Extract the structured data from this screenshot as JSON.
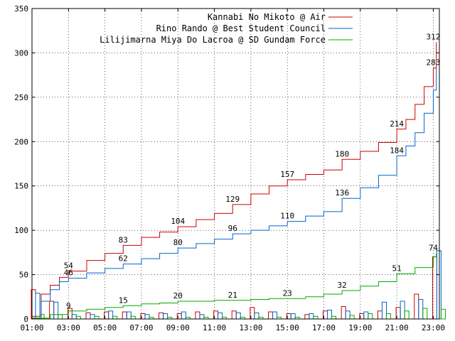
{
  "chart_data": {
    "type": "line",
    "grid": true,
    "legend_position": "top-right",
    "xlim": [
      "01:00",
      "23:20"
    ],
    "ylim": [
      0,
      350
    ],
    "yticks": [
      0,
      50,
      100,
      150,
      200,
      250,
      300,
      350
    ],
    "xticks": [
      "01:00",
      "03:00",
      "05:00",
      "07:00",
      "09:00",
      "11:00",
      "13:00",
      "15:00",
      "17:00",
      "19:00",
      "21:00",
      "23:00"
    ],
    "series": [
      {
        "name": "Kannabi No Mikoto @ Air",
        "color": "#cc0000",
        "points": [
          [
            "01:00",
            3
          ],
          [
            "01:30",
            28
          ],
          [
            "02:00",
            38
          ],
          [
            "02:30",
            47
          ],
          [
            "03:00",
            54
          ],
          [
            "04:00",
            66
          ],
          [
            "05:00",
            74
          ],
          [
            "06:00",
            83
          ],
          [
            "07:00",
            92
          ],
          [
            "08:00",
            98
          ],
          [
            "09:00",
            104
          ],
          [
            "10:00",
            112
          ],
          [
            "11:00",
            119
          ],
          [
            "12:00",
            129
          ],
          [
            "13:00",
            141
          ],
          [
            "14:00",
            150
          ],
          [
            "15:00",
            157
          ],
          [
            "16:00",
            163
          ],
          [
            "17:00",
            168
          ],
          [
            "18:00",
            180
          ],
          [
            "19:00",
            189
          ],
          [
            "20:00",
            199
          ],
          [
            "21:00",
            214
          ],
          [
            "21:30",
            225
          ],
          [
            "22:00",
            242
          ],
          [
            "22:30",
            262
          ],
          [
            "23:00",
            283
          ],
          [
            "23:10",
            312
          ]
        ],
        "labels": [
          [
            "03:00",
            54
          ],
          [
            "06:00",
            83
          ],
          [
            "09:00",
            104
          ],
          [
            "12:00",
            129
          ],
          [
            "15:00",
            157
          ],
          [
            "18:00",
            180
          ],
          [
            "21:00",
            214
          ],
          [
            "23:00",
            312
          ]
        ]
      },
      {
        "name": "Rino Rando @ Best Student Council",
        "color": "#0066cc",
        "points": [
          [
            "01:00",
            1
          ],
          [
            "01:30",
            20
          ],
          [
            "02:00",
            33
          ],
          [
            "02:30",
            42
          ],
          [
            "03:00",
            46
          ],
          [
            "04:00",
            52
          ],
          [
            "05:00",
            57
          ],
          [
            "06:00",
            62
          ],
          [
            "07:00",
            68
          ],
          [
            "08:00",
            74
          ],
          [
            "09:00",
            80
          ],
          [
            "10:00",
            85
          ],
          [
            "11:00",
            90
          ],
          [
            "12:00",
            96
          ],
          [
            "13:00",
            100
          ],
          [
            "14:00",
            105
          ],
          [
            "15:00",
            110
          ],
          [
            "16:00",
            116
          ],
          [
            "17:00",
            121
          ],
          [
            "18:00",
            136
          ],
          [
            "19:00",
            148
          ],
          [
            "20:00",
            162
          ],
          [
            "21:00",
            184
          ],
          [
            "21:30",
            195
          ],
          [
            "22:00",
            210
          ],
          [
            "22:30",
            232
          ],
          [
            "23:00",
            258
          ],
          [
            "23:10",
            283
          ]
        ],
        "labels": [
          [
            "03:00",
            46
          ],
          [
            "06:00",
            62
          ],
          [
            "09:00",
            80
          ],
          [
            "12:00",
            96
          ],
          [
            "15:00",
            110
          ],
          [
            "18:00",
            136
          ],
          [
            "21:00",
            184
          ],
          [
            "23:00",
            283
          ]
        ]
      },
      {
        "name": "Lilijimarna Miya Do Lacroa @ SD Gundam Force",
        "color": "#00aa00",
        "points": [
          [
            "01:00",
            1
          ],
          [
            "02:00",
            5
          ],
          [
            "03:00",
            9
          ],
          [
            "04:00",
            11
          ],
          [
            "05:00",
            13
          ],
          [
            "06:00",
            15
          ],
          [
            "07:00",
            17
          ],
          [
            "08:00",
            18
          ],
          [
            "09:00",
            20
          ],
          [
            "10:00",
            20
          ],
          [
            "11:00",
            21
          ],
          [
            "12:00",
            21
          ],
          [
            "13:00",
            22
          ],
          [
            "14:00",
            23
          ],
          [
            "15:00",
            23
          ],
          [
            "16:00",
            25
          ],
          [
            "17:00",
            28
          ],
          [
            "18:00",
            32
          ],
          [
            "19:00",
            37
          ],
          [
            "20:00",
            42
          ],
          [
            "21:00",
            51
          ],
          [
            "22:00",
            58
          ],
          [
            "23:00",
            70
          ],
          [
            "23:10",
            74
          ]
        ],
        "labels": [
          [
            "03:00",
            9
          ],
          [
            "06:00",
            15
          ],
          [
            "09:00",
            20
          ],
          [
            "12:00",
            21
          ],
          [
            "15:00",
            23
          ],
          [
            "18:00",
            32
          ],
          [
            "21:00",
            51
          ],
          [
            "23:00",
            74
          ]
        ]
      }
    ],
    "bars": {
      "type": "bar",
      "x": [
        "01:00",
        "02:00",
        "03:00",
        "04:00",
        "05:00",
        "06:00",
        "07:00",
        "08:00",
        "09:00",
        "10:00",
        "11:00",
        "12:00",
        "13:00",
        "14:00",
        "15:00",
        "16:00",
        "17:00",
        "18:00",
        "19:00",
        "20:00",
        "21:00",
        "22:00",
        "23:00"
      ],
      "series": [
        {
          "color": "#cc0000",
          "values": [
            33,
            20,
            12,
            7,
            8,
            8,
            6,
            7,
            6,
            8,
            9,
            9,
            13,
            8,
            6,
            5,
            9,
            14,
            6,
            9,
            13,
            28,
            70
          ]
        },
        {
          "color": "#0066cc",
          "values": [
            29,
            19,
            5,
            5,
            9,
            8,
            5,
            6,
            8,
            5,
            7,
            7,
            7,
            8,
            6,
            6,
            10,
            9,
            8,
            19,
            20,
            22,
            77
          ]
        },
        {
          "color": "#00aa00",
          "values": [
            5,
            5,
            3,
            3,
            3,
            3,
            2,
            2,
            2,
            2,
            2,
            2,
            2,
            2,
            2,
            3,
            3,
            4,
            6,
            6,
            9,
            12,
            11
          ]
        }
      ]
    }
  }
}
